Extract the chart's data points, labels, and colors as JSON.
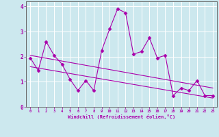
{
  "xlabel": "Windchill (Refroidissement éolien,°C)",
  "ylabel": "",
  "background_color": "#cce8ee",
  "grid_color": "#ffffff",
  "line_color": "#aa00aa",
  "spine_color": "#666666",
  "xlim": [
    -0.5,
    23.5
  ],
  "ylim": [
    0,
    4.2
  ],
  "xticks": [
    0,
    1,
    2,
    3,
    4,
    5,
    6,
    7,
    8,
    9,
    10,
    11,
    12,
    13,
    14,
    15,
    16,
    17,
    18,
    19,
    20,
    21,
    22,
    23
  ],
  "yticks": [
    0,
    1,
    2,
    3,
    4
  ],
  "series1_x": [
    0,
    1,
    2,
    3,
    4,
    5,
    6,
    7,
    8,
    9,
    10,
    11,
    12,
    13,
    14,
    15,
    16,
    17,
    18,
    19,
    20,
    21,
    22,
    23
  ],
  "series1_y": [
    1.95,
    1.45,
    2.6,
    2.05,
    1.7,
    1.1,
    0.65,
    1.05,
    0.65,
    2.25,
    3.1,
    3.9,
    3.75,
    2.1,
    2.2,
    2.75,
    1.95,
    2.05,
    0.45,
    0.75,
    0.65,
    1.05,
    0.45,
    0.45
  ],
  "trend1_x": [
    0,
    23
  ],
  "trend1_y": [
    2.05,
    0.75
  ],
  "trend2_x": [
    0,
    23
  ],
  "trend2_y": [
    1.6,
    0.35
  ],
  "marker": "D",
  "markersize": 2.5,
  "linewidth": 0.8
}
